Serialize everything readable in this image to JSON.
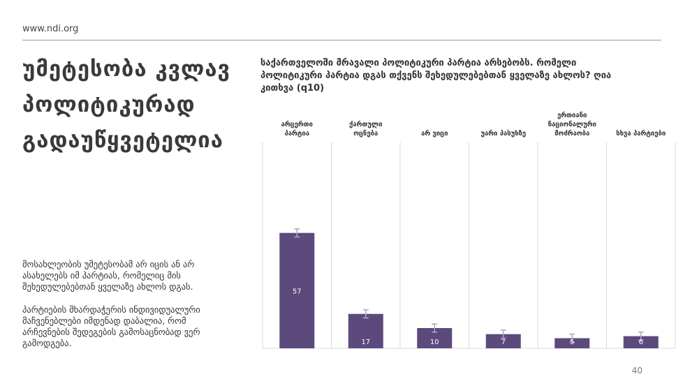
{
  "header": {
    "site_url": "www.ndi.org"
  },
  "main_title": "უმეტესობა კვლავ პოლიტიკურად გადაუწყვეტელია",
  "notes": [
    "მოსახლეობის უმეტესობამ არ იცის ან არ ასახელებს იმ პარტიას, რომელიც მის შეხედულებებთან ყველაზე ახლოს დგას.",
    "პარტიების მხარდაჭერის ინდივიდუალური მაჩვენებლები იმდენად დაბალია, რომ არჩევნების შედეგების გამოსაცნობად ვერ გამოდგება."
  ],
  "page_number": "40",
  "colors": {
    "bar": "#5c4a7d",
    "error_bar": "#b3a3c9",
    "grid": "#d9d9d9"
  },
  "chart_data": {
    "type": "bar",
    "title": "საქართველოში მრავალი პოლიტიკური პარტია არსებობს. რომელი პოლიტიკური პარტია დგას თქვენს შეხედულებებთან ყველაზე ახლოს? ღია კითხვა (q10)",
    "categories": [
      [
        "არცერთი",
        "პარტია"
      ],
      [
        "ქართული",
        "ოცნება"
      ],
      [
        "არ ვიცი"
      ],
      [
        "უარი პასუხზე"
      ],
      [
        "ერთიანი",
        "ნაციონალური",
        "მოძრაობა"
      ],
      [
        "სხვა პარტიები"
      ]
    ],
    "values": [
      57,
      17,
      10,
      7,
      5,
      6
    ],
    "value_labels": [
      "57",
      "17",
      "10",
      "7",
      "5",
      "6"
    ],
    "error_margin": 2,
    "ylim": [
      0,
      100
    ],
    "grid": false,
    "legend": "none"
  }
}
